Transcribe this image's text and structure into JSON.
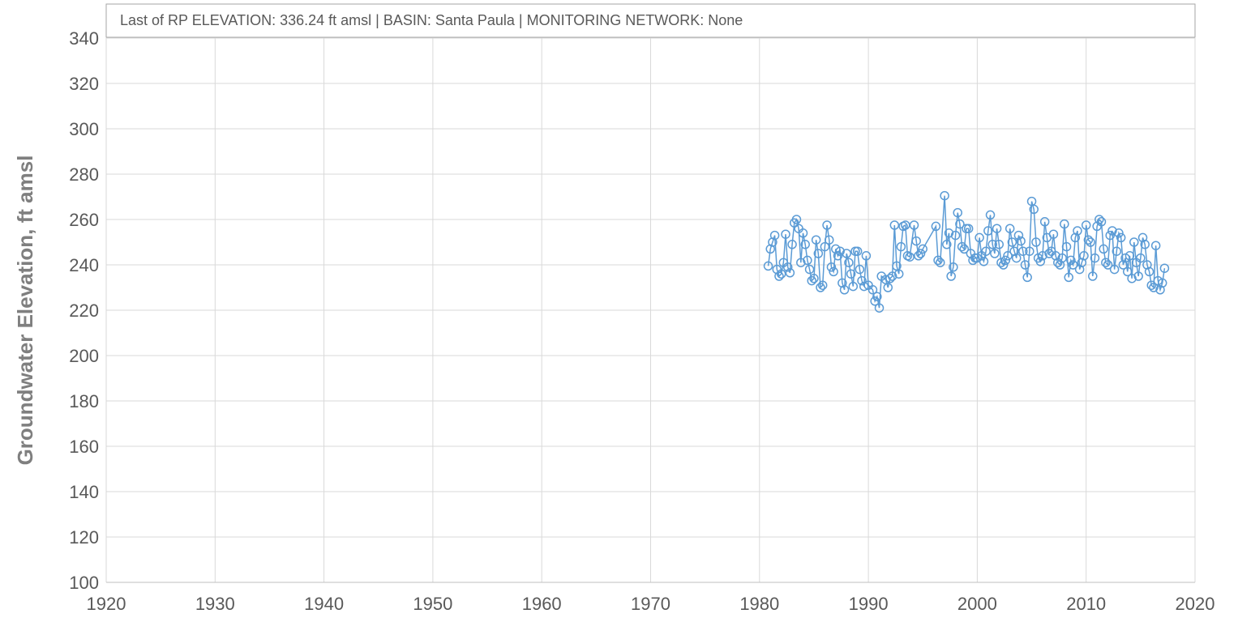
{
  "chart_data": {
    "type": "line",
    "annotation": "Last of RP ELEVATION: 336.24 ft amsl  |  BASIN: Santa Paula  |  MONITORING NETWORK: None",
    "y_label": "Groundwater Elevation, ft amsl",
    "xlim": [
      1920,
      2020
    ],
    "xticks": [
      1920,
      1930,
      1940,
      1950,
      1960,
      1970,
      1980,
      1990,
      2000,
      2010,
      2020
    ],
    "ylim": [
      100,
      340
    ],
    "yticks": [
      100,
      120,
      140,
      160,
      180,
      200,
      220,
      240,
      260,
      280,
      300,
      320,
      340
    ],
    "grid": true,
    "series": [
      {
        "color": "#5b9bd5",
        "x": [
          1980.8,
          1981.0,
          1981.2,
          1981.4,
          1981.6,
          1981.8,
          1982.0,
          1982.2,
          1982.4,
          1982.6,
          1982.8,
          1983.0,
          1983.2,
          1983.4,
          1983.6,
          1983.8,
          1984.0,
          1984.2,
          1984.4,
          1984.6,
          1984.8,
          1985.0,
          1985.2,
          1985.4,
          1985.6,
          1985.8,
          1986.0,
          1986.2,
          1986.4,
          1986.6,
          1986.8,
          1987.0,
          1987.2,
          1987.4,
          1987.6,
          1987.8,
          1988.0,
          1988.2,
          1988.4,
          1988.6,
          1988.8,
          1989.0,
          1989.2,
          1989.4,
          1989.6,
          1989.8,
          1990.0,
          1990.4,
          1990.6,
          1990.8,
          1991.0,
          1991.2,
          1991.6,
          1991.8,
          1992.0,
          1992.2,
          1992.4,
          1992.6,
          1992.8,
          1993.0,
          1993.2,
          1993.4,
          1993.6,
          1993.8,
          1994.2,
          1994.4,
          1994.6,
          1994.8,
          1995.0,
          1996.2,
          1996.4,
          1996.6,
          1997.0,
          1997.2,
          1997.4,
          1997.6,
          1997.8,
          1998.0,
          1998.2,
          1998.4,
          1998.6,
          1998.8,
          1999.0,
          1999.2,
          1999.4,
          1999.6,
          1999.8,
          2000.0,
          2000.2,
          2000.4,
          2000.6,
          2000.8,
          2001.0,
          2001.2,
          2001.4,
          2001.6,
          2001.8,
          2002.0,
          2002.2,
          2002.4,
          2002.6,
          2002.8,
          2003.0,
          2003.2,
          2003.4,
          2003.6,
          2003.8,
          2004.0,
          2004.2,
          2004.4,
          2004.6,
          2004.8,
          2005.0,
          2005.2,
          2005.4,
          2005.6,
          2005.8,
          2006.0,
          2006.2,
          2006.4,
          2006.6,
          2006.8,
          2007.0,
          2007.2,
          2007.4,
          2007.6,
          2007.8,
          2008.0,
          2008.2,
          2008.4,
          2008.6,
          2008.8,
          2009.0,
          2009.2,
          2009.4,
          2009.6,
          2009.8,
          2010.0,
          2010.2,
          2010.4,
          2010.6,
          2010.8,
          2011.0,
          2011.2,
          2011.4,
          2011.6,
          2011.8,
          2012.0,
          2012.2,
          2012.4,
          2012.6,
          2012.8,
          2013.0,
          2013.2,
          2013.4,
          2013.6,
          2013.8,
          2014.0,
          2014.2,
          2014.4,
          2014.6,
          2014.8,
          2015.0,
          2015.2,
          2015.4,
          2015.6,
          2015.8,
          2016.0,
          2016.2,
          2016.4,
          2016.6,
          2016.8,
          2017.0,
          2017.2
        ],
        "values": [
          239.5,
          247,
          250,
          253,
          238,
          235,
          236,
          241,
          253.5,
          239,
          236.5,
          249,
          258.5,
          260,
          256,
          241,
          254,
          249,
          242,
          238,
          233,
          234,
          251,
          245,
          230,
          231,
          248,
          257.5,
          251,
          239,
          237,
          247,
          244,
          246,
          232,
          229,
          245,
          241,
          236,
          230.5,
          246,
          246,
          238,
          233,
          230.5,
          244,
          231,
          229,
          224,
          226,
          221,
          235,
          233.5,
          230,
          234,
          235,
          257.5,
          239.5,
          236,
          248,
          257,
          257.5,
          244,
          243.5,
          257.5,
          250.5,
          244,
          245,
          247,
          257,
          242,
          241,
          270.5,
          249,
          254,
          235,
          239,
          253,
          263,
          258,
          248,
          247,
          256,
          256,
          245,
          242,
          243,
          243,
          252,
          244,
          241.5,
          246,
          255,
          262,
          249,
          245,
          256,
          249,
          241,
          240,
          242,
          244,
          256,
          250,
          246,
          243,
          253,
          250.5,
          246,
          240,
          234.5,
          246,
          268,
          264.5,
          250,
          243,
          241.5,
          244,
          259,
          252,
          245,
          246,
          253.5,
          244,
          241,
          240,
          243,
          258,
          248,
          234.5,
          242,
          240,
          252,
          255,
          238,
          241,
          244,
          257.5,
          251,
          250,
          235,
          243,
          257,
          260,
          259,
          247,
          241,
          240,
          253,
          255,
          238,
          246,
          254,
          252,
          240,
          243,
          237,
          244,
          234,
          250,
          241,
          235,
          243,
          252,
          249,
          240,
          237,
          231,
          230,
          248.5,
          233,
          229,
          232,
          238.5
        ]
      }
    ]
  }
}
